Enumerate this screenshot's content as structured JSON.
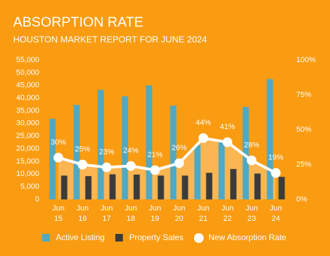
{
  "chart_data": {
    "type": "bar-line",
    "title": "ABSORPTION RATE",
    "subtitle": "HOUSTON MARKET REPORT FOR JUNE 2024",
    "categories": [
      "Jun 15",
      "Jun 16",
      "Jun 17",
      "Jun 18",
      "Jun 19",
      "Jun 20",
      "Jun 21",
      "Jun 22",
      "Jun 23",
      "Jun 24"
    ],
    "series": [
      {
        "name": "Active Listing",
        "type": "bar",
        "color": "#4fa9c4",
        "values": [
          31800,
          37300,
          43200,
          40700,
          45000,
          37000,
          21500,
          23500,
          36500,
          47500
        ]
      },
      {
        "name": "Property Sales",
        "type": "bar",
        "color": "#3b3b3b",
        "values": [
          9400,
          9200,
          9900,
          9800,
          9400,
          9400,
          10500,
          12000,
          10200,
          8900
        ]
      },
      {
        "name": "New Absorption Rate",
        "type": "line",
        "axis": "y2",
        "color": "#ffffff",
        "area_color": "#fbb651",
        "values": [
          30,
          25,
          23,
          24,
          21,
          26,
          44,
          41,
          28,
          19
        ],
        "value_labels": [
          "30%",
          "25%",
          "23%",
          "24%",
          "21%",
          "26%",
          "44%",
          "41%",
          "28%",
          "19%"
        ]
      }
    ],
    "ylim": [
      0,
      55000
    ],
    "yticks": [
      0,
      {
        "value": 5000,
        "label": "5,000"
      },
      {
        "value": 10000,
        "label": "10,000"
      },
      {
        "value": 15000,
        "label": "15,000"
      },
      {
        "value": 20000,
        "label": "20,000"
      },
      {
        "value": 25000,
        "label": "25,000"
      },
      {
        "value": 30000,
        "label": "30,000"
      },
      {
        "value": 35000,
        "label": "35,000"
      },
      {
        "value": 40000,
        "label": "40,000"
      },
      {
        "value": 45000,
        "label": "45,000"
      },
      {
        "value": 50000,
        "label": "50,000"
      },
      {
        "value": 55000,
        "label": "55,000"
      }
    ],
    "y2lim": [
      0,
      100
    ],
    "y2ticks": [
      {
        "value": 0,
        "label": "0%"
      },
      {
        "value": 25,
        "label": "25%"
      },
      {
        "value": 50,
        "label": "50%"
      },
      {
        "value": 75,
        "label": "75%"
      },
      {
        "value": 100,
        "label": "100%"
      }
    ],
    "grid": false,
    "legend": "bottom"
  }
}
